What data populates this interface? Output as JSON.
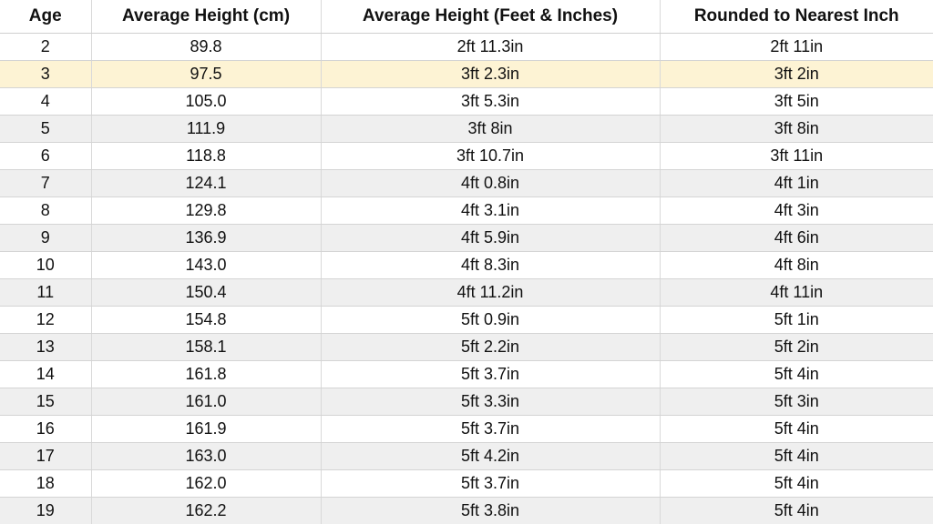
{
  "table": {
    "headers": {
      "age": "Age",
      "cm": "Average Height (cm)",
      "ftin": "Average Height (Feet & Inches)",
      "rounded": "Rounded to Nearest Inch"
    },
    "rows": [
      {
        "age": "2",
        "cm": "89.8",
        "ftin": "2ft 11.3in",
        "rounded": "2ft 11in"
      },
      {
        "age": "3",
        "cm": "97.5",
        "ftin": "3ft 2.3in",
        "rounded": "3ft 2in"
      },
      {
        "age": "4",
        "cm": "105.0",
        "ftin": "3ft 5.3in",
        "rounded": "3ft 5in"
      },
      {
        "age": "5",
        "cm": "111.9",
        "ftin": "3ft 8in",
        "rounded": "3ft 8in"
      },
      {
        "age": "6",
        "cm": "118.8",
        "ftin": "3ft 10.7in",
        "rounded": "3ft 11in"
      },
      {
        "age": "7",
        "cm": "124.1",
        "ftin": "4ft 0.8in",
        "rounded": "4ft 1in"
      },
      {
        "age": "8",
        "cm": "129.8",
        "ftin": "4ft 3.1in",
        "rounded": "4ft 3in"
      },
      {
        "age": "9",
        "cm": "136.9",
        "ftin": "4ft 5.9in",
        "rounded": "4ft 6in"
      },
      {
        "age": "10",
        "cm": "143.0",
        "ftin": "4ft 8.3in",
        "rounded": "4ft 8in"
      },
      {
        "age": "11",
        "cm": "150.4",
        "ftin": "4ft 11.2in",
        "rounded": "4ft 11in"
      },
      {
        "age": "12",
        "cm": "154.8",
        "ftin": "5ft 0.9in",
        "rounded": "5ft 1in"
      },
      {
        "age": "13",
        "cm": "158.1",
        "ftin": "5ft 2.2in",
        "rounded": "5ft 2in"
      },
      {
        "age": "14",
        "cm": "161.8",
        "ftin": "5ft 3.7in",
        "rounded": "5ft 4in"
      },
      {
        "age": "15",
        "cm": "161.0",
        "ftin": "5ft 3.3in",
        "rounded": "5ft 3in"
      },
      {
        "age": "16",
        "cm": "161.9",
        "ftin": "5ft 3.7in",
        "rounded": "5ft 4in"
      },
      {
        "age": "17",
        "cm": "163.0",
        "ftin": "5ft 4.2in",
        "rounded": "5ft 4in"
      },
      {
        "age": "18",
        "cm": "162.0",
        "ftin": "5ft 3.7in",
        "rounded": "5ft 4in"
      },
      {
        "age": "19",
        "cm": "162.2",
        "ftin": "5ft 3.8in",
        "rounded": "5ft 4in"
      }
    ]
  },
  "colors": {
    "highlight_row": "#fdf3d4",
    "stripe_row": "#efefef"
  }
}
